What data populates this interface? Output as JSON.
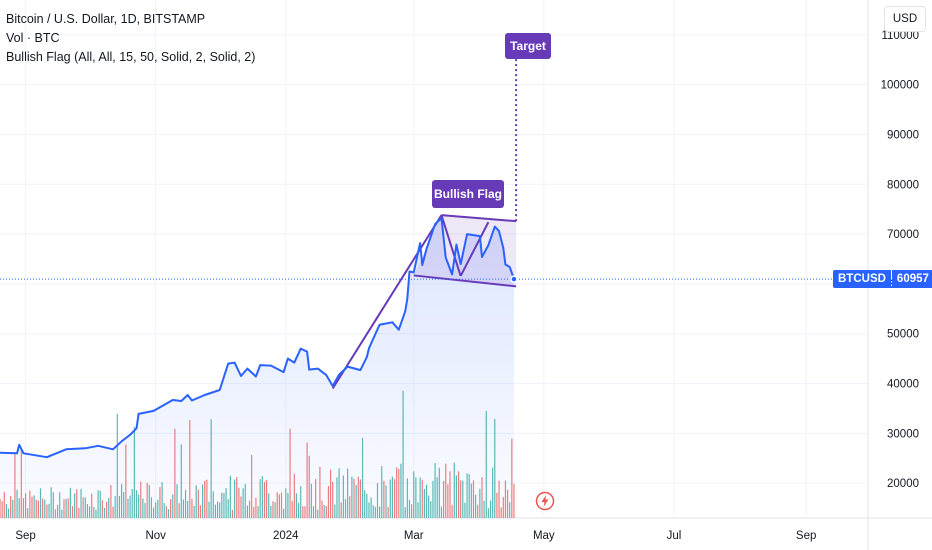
{
  "legend": {
    "title": "Bitcoin / U.S. Dollar, 1D, BITSTAMP",
    "volume": "Vol · BTC",
    "indicator": "Bullish Flag (All, All, 15, 50, Solid, 2, Solid, 2)"
  },
  "currency_button": "USD",
  "price_tag": {
    "symbol": "BTCUSD",
    "value": "60957"
  },
  "annotations": {
    "bullish_flag": "Bullish Flag",
    "target": "Target"
  },
  "colors": {
    "price_line": "#2962ff",
    "area_fill": "#2962ff",
    "pattern": "#673ab7",
    "volume_up": "#26a69a",
    "volume_down": "#ef5350"
  },
  "icons": {
    "flash": "flash-icon"
  },
  "chart_data": {
    "type": "line",
    "title": "Bitcoin / U.S. Dollar, 1D, BITSTAMP",
    "xlabel": "",
    "ylabel": "",
    "x_range": [
      "2023-08-20",
      "2024-09-30"
    ],
    "ylim": [
      13000,
      117000
    ],
    "y_ticks": [
      20000,
      30000,
      40000,
      50000,
      60000,
      70000,
      80000,
      90000,
      100000,
      110000
    ],
    "x_ticks": [
      {
        "date": "2023-09-01",
        "label": "Sep"
      },
      {
        "date": "2023-11-01",
        "label": "Nov"
      },
      {
        "date": "2024-01-01",
        "label": "2024"
      },
      {
        "date": "2024-03-01",
        "label": "Mar"
      },
      {
        "date": "2024-05-01",
        "label": "May"
      },
      {
        "date": "2024-07-01",
        "label": "Jul"
      },
      {
        "date": "2024-09-01",
        "label": "Sep"
      }
    ],
    "grid": true,
    "last_price": 60957,
    "series": [
      {
        "points": [
          [
            "2023-08-20",
            26100
          ],
          [
            "2023-08-28",
            26000
          ],
          [
            "2023-08-29",
            27700
          ],
          [
            "2023-08-31",
            26000
          ],
          [
            "2023-09-11",
            25200
          ],
          [
            "2023-09-20",
            26800
          ],
          [
            "2023-09-29",
            27000
          ],
          [
            "2023-10-05",
            27500
          ],
          [
            "2023-10-12",
            26800
          ],
          [
            "2023-10-16",
            28400
          ],
          [
            "2023-10-20",
            29700
          ],
          [
            "2023-10-23",
            31000
          ],
          [
            "2023-10-24",
            33900
          ],
          [
            "2023-10-31",
            34500
          ],
          [
            "2023-11-09",
            36700
          ],
          [
            "2023-11-13",
            36500
          ],
          [
            "2023-11-16",
            37700
          ],
          [
            "2023-11-18",
            36600
          ],
          [
            "2023-11-24",
            37700
          ],
          [
            "2023-12-01",
            38700
          ],
          [
            "2023-12-05",
            44000
          ],
          [
            "2023-12-08",
            44200
          ],
          [
            "2023-12-11",
            41500
          ],
          [
            "2023-12-14",
            43000
          ],
          [
            "2023-12-18",
            41400
          ],
          [
            "2023-12-20",
            43700
          ],
          [
            "2023-12-25",
            43600
          ],
          [
            "2023-12-31",
            42300
          ],
          [
            "2024-01-02",
            45000
          ],
          [
            "2024-01-05",
            44200
          ],
          [
            "2024-01-08",
            47000
          ],
          [
            "2024-01-11",
            46400
          ],
          [
            "2024-01-12",
            42800
          ],
          [
            "2024-01-16",
            43000
          ],
          [
            "2024-01-20",
            41700
          ],
          [
            "2024-01-23",
            39500
          ],
          [
            "2024-01-26",
            41800
          ],
          [
            "2024-01-30",
            43400
          ],
          [
            "2024-02-05",
            42700
          ],
          [
            "2024-02-08",
            45300
          ],
          [
            "2024-02-09",
            47100
          ],
          [
            "2024-02-14",
            51800
          ],
          [
            "2024-02-20",
            52300
          ],
          [
            "2024-02-23",
            50800
          ],
          [
            "2024-02-26",
            54500
          ],
          [
            "2024-02-27",
            57000
          ],
          [
            "2024-02-28",
            62500
          ],
          [
            "2024-03-01",
            62300
          ],
          [
            "2024-03-04",
            68200
          ],
          [
            "2024-03-05",
            63800
          ],
          [
            "2024-03-07",
            67000
          ],
          [
            "2024-03-11",
            72000
          ],
          [
            "2024-03-14",
            73200
          ],
          [
            "2024-03-16",
            65300
          ],
          [
            "2024-03-19",
            61900
          ],
          [
            "2024-03-21",
            67900
          ],
          [
            "2024-03-23",
            64000
          ],
          [
            "2024-03-26",
            70000
          ],
          [
            "2024-03-29",
            69800
          ],
          [
            "2024-04-01",
            69600
          ],
          [
            "2024-04-02",
            65400
          ],
          [
            "2024-04-05",
            67800
          ],
          [
            "2024-04-08",
            71500
          ],
          [
            "2024-04-10",
            70600
          ],
          [
            "2024-04-12",
            67200
          ],
          [
            "2024-04-13",
            63900
          ],
          [
            "2024-04-15",
            63400
          ],
          [
            "2024-04-17",
            60957
          ]
        ]
      }
    ],
    "volume": {
      "unit": "BTC",
      "bars": "daily volume histogram, green = up day, red = down day"
    },
    "pattern": {
      "name": "Bullish Flag",
      "pole": [
        [
          "2024-01-23",
          39000
        ],
        [
          "2024-03-14",
          73800
        ]
      ],
      "flag_upper": [
        [
          "2024-03-14",
          73800
        ],
        [
          "2024-04-18",
          72600
        ]
      ],
      "flag_lower": [
        [
          "2024-03-01",
          61700
        ],
        [
          "2024-04-18",
          59500
        ]
      ],
      "target": [
        [
          "2024-04-18",
          72600
        ],
        [
          "2024-04-18",
          108000
        ]
      ]
    }
  }
}
